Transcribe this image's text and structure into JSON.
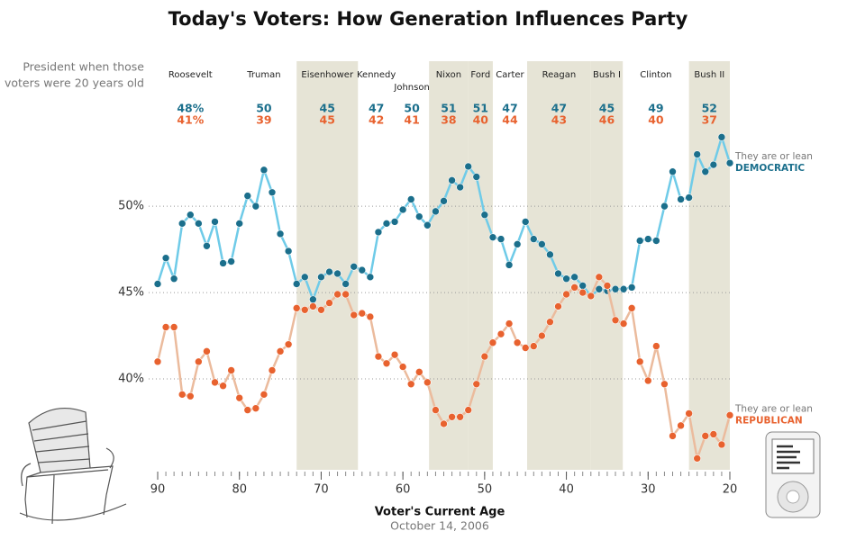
{
  "chart_data": {
    "type": "line",
    "title": "Today's Voters: How Generation Influences Party",
    "era_note": [
      "President when those",
      "voters were 20 years old"
    ],
    "x_label": "Voter's Current Age",
    "subtitle": "October 14, 2006",
    "x": [
      90,
      89,
      88,
      87,
      86,
      85,
      84,
      83,
      82,
      81,
      80,
      79,
      78,
      77,
      76,
      75,
      74,
      73,
      72,
      71,
      70,
      69,
      68,
      67,
      66,
      65,
      64,
      63,
      62,
      61,
      60,
      59,
      58,
      57,
      56,
      55,
      54,
      53,
      52,
      51,
      50,
      49,
      48,
      47,
      46,
      45,
      44,
      43,
      42,
      41,
      40,
      39,
      38,
      37,
      36,
      35,
      34,
      33,
      32,
      31,
      30,
      29,
      28,
      27,
      26,
      25,
      24,
      23,
      22,
      21,
      20
    ],
    "xlim": [
      90,
      20
    ],
    "xticks": [
      90,
      80,
      70,
      60,
      50,
      40,
      30,
      20
    ],
    "ylim": [
      35,
      58.5
    ],
    "yticks": [
      {
        "value": 40,
        "label": "40%"
      },
      {
        "value": 45,
        "label": "45%"
      },
      {
        "value": 50,
        "label": "50%"
      }
    ],
    "grid": true,
    "series": [
      {
        "name": "DEMOCRATIC",
        "note": "They are or lean",
        "color": "#6fcbe8",
        "marker_color": "#1b6f8c",
        "values": [
          45.5,
          47.0,
          45.8,
          49.0,
          49.5,
          49.0,
          47.7,
          49.1,
          46.7,
          46.8,
          49.0,
          50.6,
          50.0,
          52.1,
          50.8,
          48.4,
          47.4,
          45.5,
          45.9,
          44.6,
          45.9,
          46.2,
          46.1,
          45.5,
          46.5,
          46.3,
          45.9,
          48.5,
          49.0,
          49.1,
          49.8,
          50.4,
          49.4,
          48.9,
          49.7,
          50.3,
          51.5,
          51.1,
          52.3,
          51.7,
          49.5,
          48.2,
          48.1,
          46.6,
          47.8,
          49.1,
          48.1,
          47.8,
          47.2,
          46.1,
          45.8,
          45.9,
          45.4,
          44.8,
          45.2,
          45.1,
          45.2,
          45.2,
          45.3,
          48.0,
          48.1,
          48.0,
          50.0,
          52.0,
          50.4,
          50.5,
          53.0,
          52.0,
          52.4,
          54.0,
          52.5
        ]
      },
      {
        "name": "REPUBLICAN",
        "note": "They are or lean",
        "color": "#ebbb9d",
        "marker_color": "#e8622f",
        "values": [
          41.0,
          43.0,
          43.0,
          39.1,
          39.0,
          41.0,
          41.6,
          39.8,
          39.6,
          40.5,
          38.9,
          38.2,
          38.3,
          39.1,
          40.5,
          41.6,
          42.0,
          44.1,
          44.0,
          44.2,
          44.0,
          44.4,
          44.9,
          44.9,
          43.7,
          43.8,
          43.6,
          41.3,
          40.9,
          41.4,
          40.7,
          39.7,
          40.4,
          39.8,
          38.2,
          37.4,
          37.8,
          37.8,
          38.2,
          39.7,
          41.3,
          42.1,
          42.6,
          43.2,
          42.1,
          41.8,
          41.9,
          42.5,
          43.3,
          44.2,
          44.9,
          45.3,
          45.0,
          44.8,
          45.9,
          45.4,
          43.4,
          43.2,
          44.1,
          41.0,
          39.9,
          41.9,
          39.7,
          36.7,
          37.3,
          38.0,
          35.4,
          36.7,
          36.8,
          36.2,
          37.9
        ]
      }
    ],
    "eras": [
      {
        "name": "Roosevelt",
        "span": [
          91,
          81
        ],
        "shaded": false,
        "dem": 48,
        "rep": 41,
        "dem_label": "48%",
        "rep_label": "41%"
      },
      {
        "name": "Truman",
        "span": [
          81,
          73
        ],
        "shaded": false,
        "dem": 50,
        "rep": 39
      },
      {
        "name": "Eisenhower",
        "span": [
          73,
          65.5
        ],
        "shaded": true,
        "dem": 45,
        "rep": 45
      },
      {
        "name": "Kennedy",
        "span": [
          65.5,
          61
        ],
        "shaded": false,
        "dem": 47,
        "rep": 42
      },
      {
        "name": "Johnson",
        "span": [
          61,
          56.8
        ],
        "shaded": false,
        "dem": 50,
        "rep": 41
      },
      {
        "name": "Nixon",
        "span": [
          56.8,
          52
        ],
        "shaded": true,
        "dem": 51,
        "rep": 38
      },
      {
        "name": "Ford",
        "span": [
          52,
          49
        ],
        "shaded": true,
        "dem": 51,
        "rep": 40
      },
      {
        "name": "Carter",
        "span": [
          49,
          44.8
        ],
        "shaded": false,
        "dem": 47,
        "rep": 44
      },
      {
        "name": "Reagan",
        "span": [
          44.8,
          37
        ],
        "shaded": true,
        "dem": 47,
        "rep": 43
      },
      {
        "name": "Bush I",
        "span": [
          37,
          33.1
        ],
        "shaded": true,
        "dem": 45,
        "rep": 46
      },
      {
        "name": "Clinton",
        "span": [
          33.1,
          25
        ],
        "shaded": false,
        "dem": 49,
        "rep": 40
      },
      {
        "name": "Bush II",
        "span": [
          25,
          20
        ],
        "shaded": true,
        "dem": 52,
        "rep": 37
      }
    ]
  }
}
